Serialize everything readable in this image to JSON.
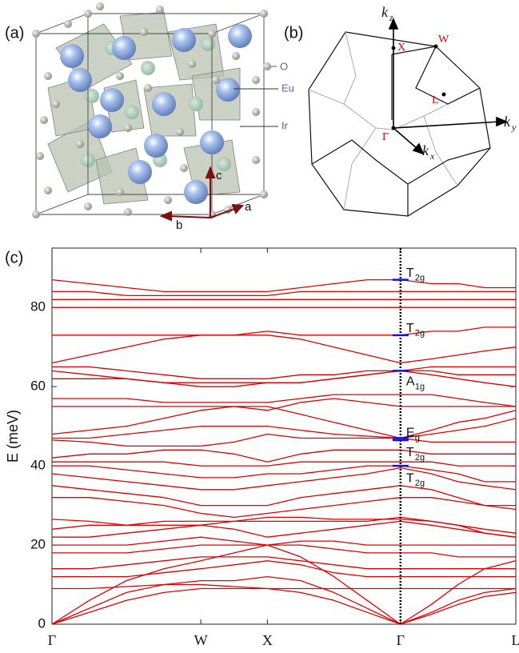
{
  "panel_a": {
    "label": "(a)",
    "atoms": [
      "O",
      "Eu",
      "Ir"
    ],
    "axes": [
      "c",
      "b",
      "a"
    ]
  },
  "panel_b": {
    "label": "(b)",
    "points": [
      "X",
      "W",
      "L",
      "Γ"
    ],
    "axes": [
      {
        "base": "k",
        "sub": "z"
      },
      {
        "base": "k",
        "sub": "x"
      },
      {
        "base": "k",
        "sub": "y"
      }
    ]
  },
  "chart_data": {
    "type": "line",
    "panel_label": "(c)",
    "ylabel": "E (meV)",
    "x": [
      0,
      0.28,
      0.56,
      0.84,
      1.118,
      1.368,
      1.618,
      1.868,
      2.118,
      2.368,
      2.618,
      2.85,
      3.05,
      3.25,
      3.484
    ],
    "xlim": [
      0,
      3.484
    ],
    "xticks": [
      {
        "value": 0,
        "label": "Γ"
      },
      {
        "value": 1.118,
        "label": "W"
      },
      {
        "value": 1.618,
        "label": "X"
      },
      {
        "value": 2.618,
        "label": "Γ"
      },
      {
        "value": 3.484,
        "label": "L"
      }
    ],
    "ylim": [
      0,
      95
    ],
    "yticks": [
      0,
      20,
      40,
      60,
      80
    ],
    "color": "#e00000",
    "series": [
      {
        "values": [
          0,
          3,
          6,
          8,
          9,
          9,
          9,
          8,
          6,
          3,
          0,
          2.5,
          5,
          7,
          8
        ]
      },
      {
        "values": [
          0,
          4,
          8,
          10,
          11,
          11,
          12,
          11,
          8,
          4,
          0,
          3,
          6,
          8,
          9
        ]
      },
      {
        "values": [
          0,
          6,
          11,
          14,
          16,
          18,
          20,
          17,
          12,
          6,
          0,
          5,
          10,
          14,
          16
        ]
      },
      {
        "values": [
          9,
          9,
          9.5,
          10,
          10,
          9.5,
          9,
          9,
          9,
          9,
          9,
          9,
          9,
          9,
          9
        ]
      },
      {
        "values": [
          12,
          12,
          12,
          13,
          14,
          15,
          16,
          15,
          13,
          12,
          12,
          12,
          12,
          12,
          12
        ]
      },
      {
        "values": [
          14,
          14,
          15,
          16,
          17,
          17,
          17,
          16,
          15,
          14,
          14,
          14,
          14,
          14,
          14
        ]
      },
      {
        "values": [
          18,
          18,
          18,
          19,
          20,
          20,
          20,
          20,
          19,
          18,
          18,
          18,
          17,
          17,
          17
        ]
      },
      {
        "values": [
          20,
          20,
          20,
          21,
          22,
          21,
          20,
          21,
          21,
          20,
          20,
          20,
          20,
          20,
          20
        ]
      },
      {
        "values": [
          22,
          22,
          23,
          24,
          25,
          24,
          22,
          23,
          24,
          25,
          26,
          25,
          24,
          23,
          22
        ]
      },
      {
        "values": [
          24,
          25,
          25,
          26,
          26,
          26,
          26,
          26,
          26,
          26,
          27,
          26,
          25,
          23,
          22
        ]
      },
      {
        "values": [
          26.5,
          26,
          25,
          25,
          25,
          26,
          27,
          27,
          26.5,
          26.5,
          26.5,
          26,
          25,
          24,
          23
        ]
      },
      {
        "values": [
          32,
          32,
          31,
          30,
          28,
          27,
          28,
          29,
          30,
          31,
          32,
          32,
          31,
          30,
          30
        ]
      },
      {
        "values": [
          35,
          34,
          33,
          32,
          30,
          30,
          30,
          32,
          33,
          34,
          35,
          34,
          32,
          30,
          29
        ]
      },
      {
        "values": [
          38,
          37,
          36,
          35,
          34,
          34,
          35,
          36,
          37,
          38,
          39.5,
          38,
          36,
          35,
          34
        ]
      },
      {
        "values": [
          40,
          40,
          39,
          38,
          37,
          37,
          38,
          38,
          39,
          40,
          40,
          39,
          38,
          36,
          36
        ]
      },
      {
        "values": [
          41,
          41,
          41,
          41,
          40,
          40,
          40,
          41,
          41,
          41,
          41,
          41,
          40,
          40,
          40
        ]
      },
      {
        "values": [
          42,
          43,
          43,
          44,
          44,
          43,
          41,
          43,
          44,
          44,
          44,
          43,
          43,
          43,
          43
        ]
      },
      {
        "values": [
          46.5,
          46,
          45,
          45,
          45,
          46,
          48,
          47,
          47,
          47,
          47,
          46,
          46,
          46,
          46
        ]
      },
      {
        "values": [
          47,
          47,
          48,
          49,
          50,
          50,
          50,
          49,
          48,
          47.5,
          47,
          48,
          49,
          50,
          52
        ]
      },
      {
        "values": [
          48,
          49,
          50,
          52,
          54,
          55,
          55,
          53,
          51,
          49,
          47,
          49,
          51,
          52,
          54
        ]
      },
      {
        "values": [
          55,
          55,
          55,
          55,
          55,
          55,
          54,
          56,
          57,
          56,
          55,
          55,
          55,
          55,
          55
        ]
      },
      {
        "values": [
          57,
          57,
          57,
          56,
          56,
          56,
          56,
          57,
          58,
          58,
          58,
          58,
          57,
          56,
          55
        ]
      },
      {
        "values": [
          62,
          62,
          62,
          61,
          60,
          60,
          61,
          61,
          62,
          63,
          64,
          63,
          62,
          61,
          60
        ]
      },
      {
        "values": [
          64,
          63,
          62,
          61,
          61,
          61,
          61,
          61,
          62,
          63,
          64,
          64,
          63,
          63,
          63
        ]
      },
      {
        "values": [
          65,
          65,
          64,
          63,
          62,
          62,
          62,
          63,
          63,
          64,
          64,
          65,
          65,
          65,
          65
        ]
      },
      {
        "values": [
          66,
          68,
          70,
          72,
          73,
          73,
          73,
          72,
          70,
          68,
          66,
          67,
          68,
          69,
          70
        ]
      },
      {
        "values": [
          73,
          73,
          73,
          73,
          73,
          73,
          74,
          73,
          73,
          73,
          73,
          74,
          74,
          75,
          75
        ]
      },
      {
        "values": [
          80,
          80,
          80,
          80,
          80,
          80,
          80,
          80,
          80,
          80,
          80,
          80,
          80,
          80,
          80
        ]
      },
      {
        "values": [
          82,
          82,
          82,
          82,
          82,
          82,
          82,
          82,
          82,
          82,
          82,
          82,
          82,
          82,
          82
        ]
      },
      {
        "values": [
          84,
          84,
          83,
          83,
          83,
          83,
          83,
          84,
          84,
          84,
          84,
          84,
          84,
          84,
          84
        ]
      },
      {
        "values": [
          87,
          86,
          85,
          84,
          84,
          84,
          84,
          85,
          86,
          87,
          87,
          86,
          86,
          85,
          85
        ]
      }
    ],
    "gamma_modes": [
      {
        "label": "T",
        "subscript": "2g",
        "energy": 87
      },
      {
        "label": "T",
        "subscript": "2g",
        "energy": 73
      },
      {
        "label": "A",
        "subscript": "1g",
        "energy": 64
      },
      {
        "label": "E",
        "subscript": "g",
        "energy": 47
      },
      {
        "label": "T",
        "subscript": "2g",
        "energy": 46.5
      },
      {
        "label": "T",
        "subscript": "2g",
        "energy": 40
      }
    ],
    "mode_color": "#1010e0"
  }
}
